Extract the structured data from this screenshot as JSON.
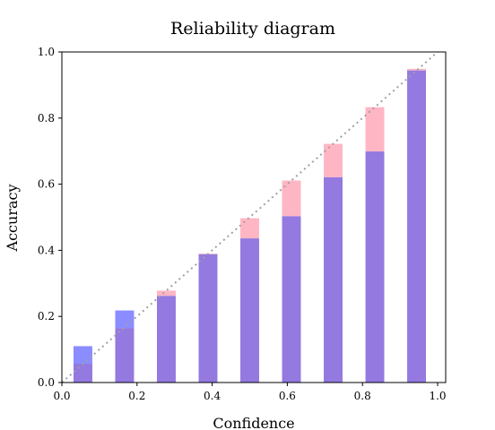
{
  "chart_data": {
    "type": "bar",
    "title": "Reliability diagram",
    "xlabel": "Confidence",
    "ylabel": "Accuracy",
    "xlim": [
      0.0,
      1.0
    ],
    "ylim": [
      0.0,
      1.0
    ],
    "xticks": [
      "0.0",
      "0.2",
      "0.4",
      "0.6",
      "0.8",
      "1.0"
    ],
    "yticks": [
      "0.0",
      "0.2",
      "0.4",
      "0.6",
      "0.8",
      "1.0"
    ],
    "grid": false,
    "legend": false,
    "bin_centers": [
      0.056,
      0.167,
      0.278,
      0.389,
      0.5,
      0.611,
      0.722,
      0.833,
      0.944
    ],
    "bar_width_data": 0.05,
    "series": [
      {
        "values": [
          0.057,
          0.165,
          0.278,
          0.39,
          0.497,
          0.611,
          0.722,
          0.833,
          0.949
        ],
        "color": "#ffb6c4"
      },
      {
        "values": [
          0.11,
          0.218,
          0.262,
          0.388,
          0.436,
          0.503,
          0.621,
          0.699,
          0.944
        ],
        "color": "#8a8cff"
      }
    ],
    "overlap_color": "#9379e0",
    "diagonal": {
      "from": [
        0.0,
        0.0
      ],
      "to": [
        1.0,
        1.0
      ],
      "style": "dotted",
      "color": "#a0a0a0"
    }
  }
}
